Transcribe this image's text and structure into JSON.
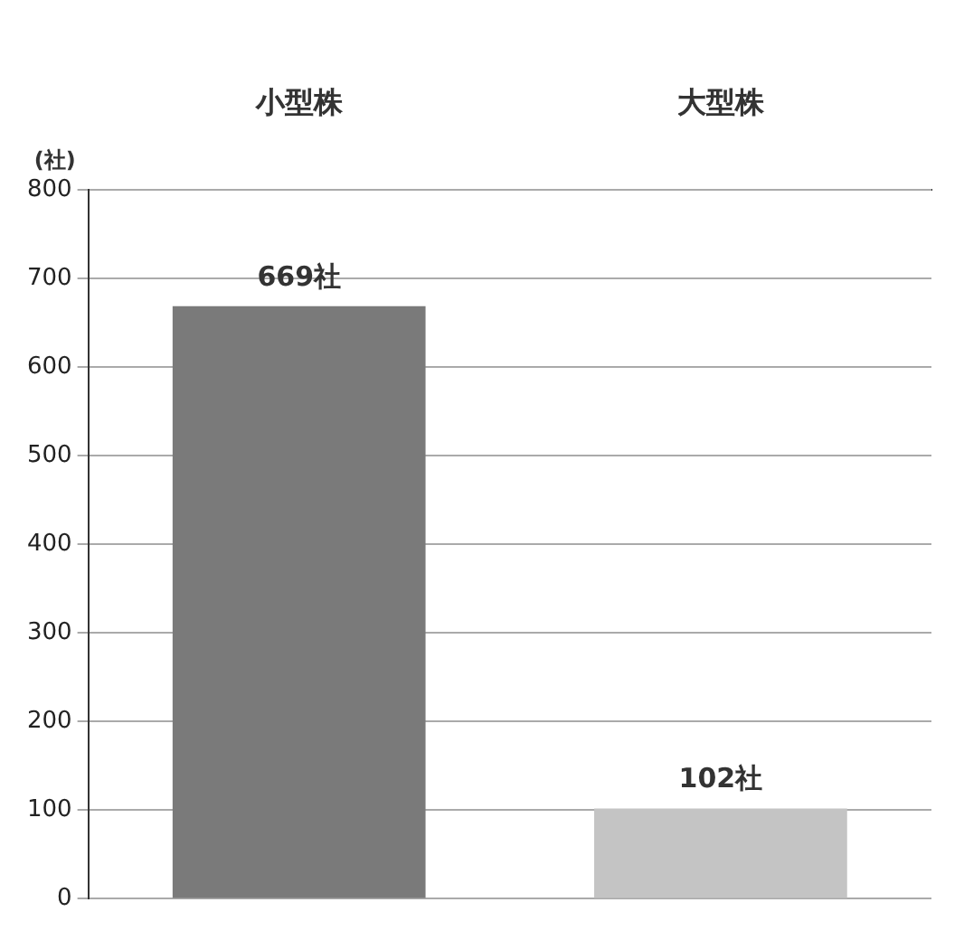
{
  "chart_data": {
    "type": "bar",
    "ylabel": "(社)",
    "categories": [
      "小型株",
      "大型株"
    ],
    "values": [
      669,
      102
    ],
    "colors": [
      "#7a7a7a",
      "#c4c4c4"
    ],
    "value_labels": [
      "669社",
      "102社"
    ],
    "ylim": [
      0,
      800
    ],
    "yticks": [
      0,
      100,
      200,
      300,
      400,
      500,
      600,
      700,
      800
    ],
    "grid": "y"
  }
}
